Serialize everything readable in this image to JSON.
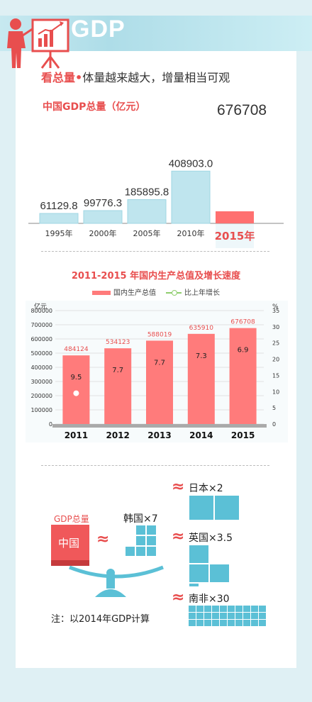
{
  "header": {
    "title": "GDP"
  },
  "subtitle": {
    "emphasis": "看总量",
    "dot": "•",
    "rest": "体量越来越大，增量相当可观"
  },
  "total_chart": {
    "title": "中国GDP总量（亿元）",
    "years": [
      "1995年",
      "2000年",
      "2005年",
      "2010年",
      "2015年"
    ],
    "labels": [
      "61129.8",
      "99776.3",
      "185895.8",
      "408903.0",
      "676708"
    ],
    "values": [
      61129.8,
      99776.3,
      185895.8,
      408903.0,
      676708
    ],
    "bar_color": "#bfe5ee",
    "highlight_color": "#ff7070"
  },
  "chart_data": {
    "type": "bar",
    "title": "2011-2015 年国内生产总值及增长速度",
    "categories": [
      "2011",
      "2012",
      "2013",
      "2014",
      "2015"
    ],
    "series": [
      {
        "name": "国内生产总值",
        "values": [
          484124,
          534123,
          588019,
          635910,
          676708
        ]
      },
      {
        "name": "比上年增长",
        "values": [
          9.5,
          7.7,
          7.7,
          7.3,
          6.9
        ]
      }
    ],
    "value_labels": [
      "484124",
      "534123",
      "588019",
      "635910",
      "676708"
    ],
    "growth_labels": [
      "9.5",
      "7.7",
      "7.7",
      "7.3",
      "6.9"
    ],
    "ylabel": "亿元",
    "y2label": "%",
    "ylim": [
      0,
      800000
    ],
    "y2lim": [
      0,
      35
    ],
    "yticks": [
      "800000",
      "700000",
      "600000",
      "500000",
      "400000",
      "300000",
      "200000",
      "100000",
      "0"
    ],
    "y2ticks": [
      "35",
      "30",
      "25",
      "20",
      "15",
      "10",
      "5",
      "0"
    ],
    "grid": true
  },
  "comparison": {
    "gdp_label": "GDP总量",
    "china": "中国",
    "korea": "韩国×7",
    "japan": "日本×2",
    "uk": "英国×3.5",
    "south_africa": "南非×30",
    "approx": "≈",
    "note": "注：以2014年GDP计算"
  },
  "colors": {
    "accent": "#e84e4e",
    "teal": "#5bc0d6",
    "bar": "#ff7b7b"
  }
}
